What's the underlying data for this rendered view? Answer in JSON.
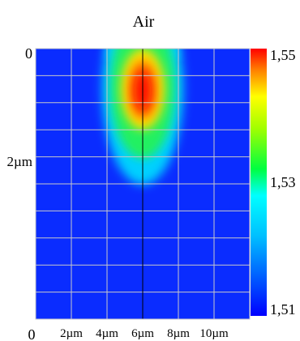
{
  "chart_data": {
    "type": "heatmap",
    "title": "Air",
    "x_unit": "µm",
    "y_unit": "µm",
    "x_origin_label": "0",
    "x_ticks": [
      {
        "value": 2,
        "label": "2µm"
      },
      {
        "value": 4,
        "label": "4µm"
      },
      {
        "value": 6,
        "label": "6µm"
      },
      {
        "value": 8,
        "label": "8µm"
      },
      {
        "value": 10,
        "label": "10µm"
      }
    ],
    "y_ticks": [
      {
        "value": 0,
        "label": "0"
      },
      {
        "value": 2,
        "label": "2µm"
      }
    ],
    "x_range": [
      0,
      12
    ],
    "y_range": [
      0,
      4.8
    ],
    "y_inverted": true,
    "colorbar": {
      "min": 1.51,
      "max": 1.55,
      "ticks": [
        "1,55",
        "1,53",
        "1,51"
      ],
      "tick_values": [
        1.55,
        1.53,
        1.51
      ],
      "colormap": "jet"
    },
    "field": {
      "background": 1.51,
      "peak_value": 1.55,
      "peak_x": 6.0,
      "peak_y": 0.55,
      "center_line_x": 6.0
    },
    "grid": true
  }
}
